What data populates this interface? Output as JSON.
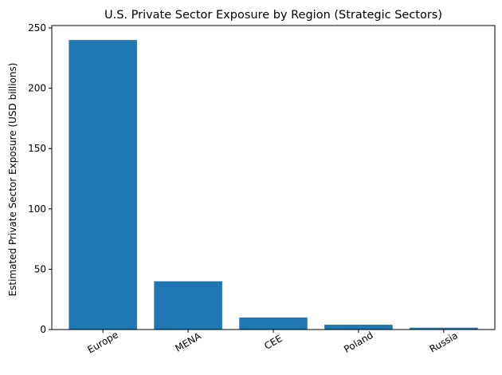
{
  "chart_data": {
    "type": "bar",
    "title": "U.S. Private Sector Exposure by Region (Strategic Sectors)",
    "xlabel": "",
    "ylabel": "Estimated Private Sector Exposure (USD billions)",
    "categories": [
      "Europe",
      "MENA",
      "CEE",
      "Poland",
      "Russia"
    ],
    "values": [
      240,
      40,
      10,
      4,
      1.5
    ],
    "ylim": [
      0,
      252
    ],
    "yticks": [
      0,
      50,
      100,
      150,
      200,
      250
    ],
    "bar_color": "#1f77b4",
    "grid": false,
    "xtick_rotation": -30
  }
}
